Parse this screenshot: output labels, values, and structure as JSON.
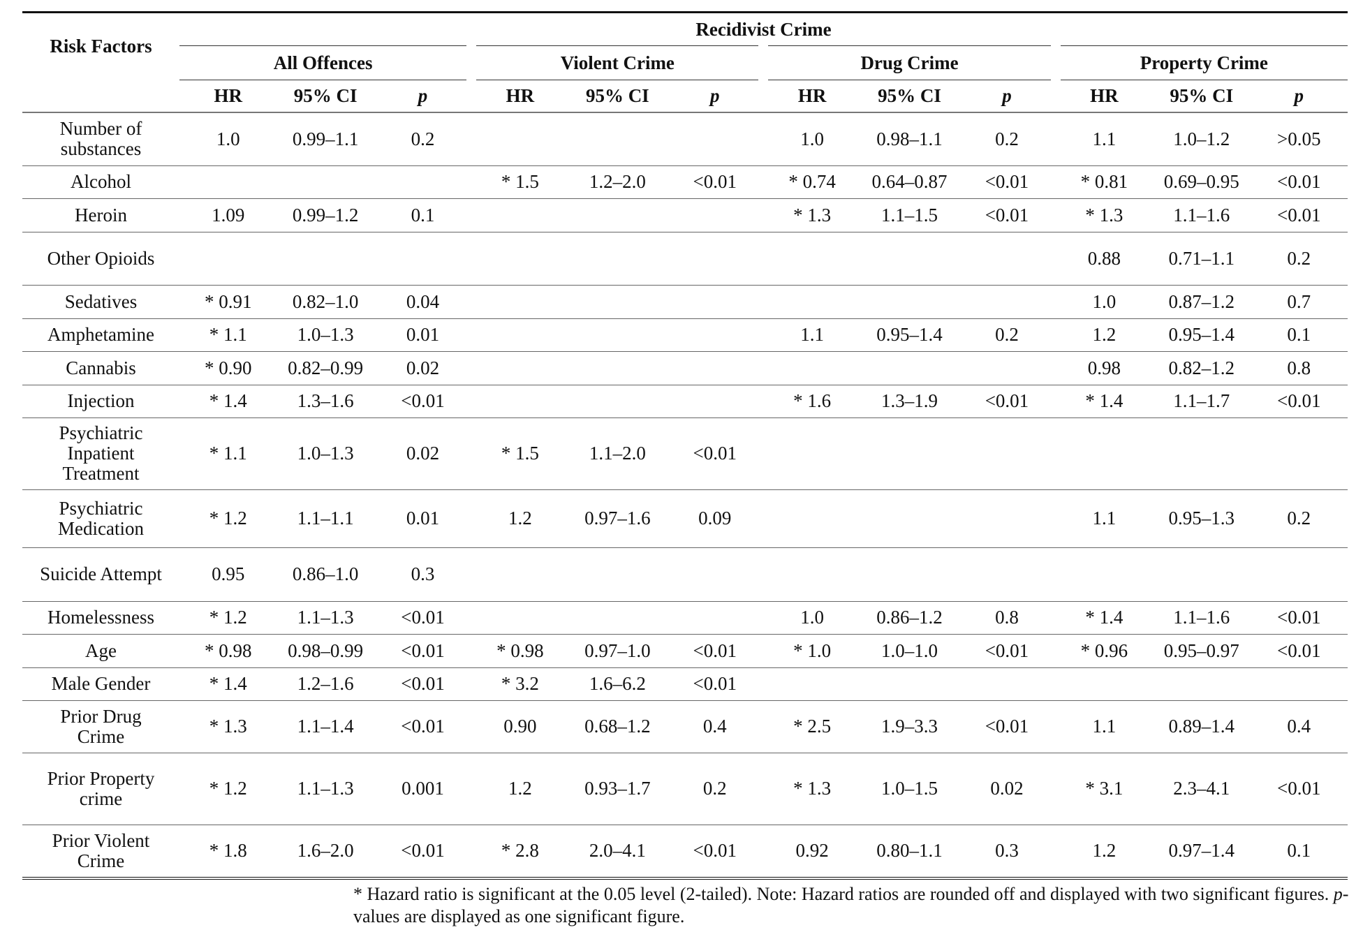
{
  "header": {
    "risk_factors": "Risk Factors",
    "super": "Recidivist Crime",
    "groups": [
      "All Offences",
      "Violent Crime",
      "Drug Crime",
      "Property Crime"
    ],
    "sub": [
      "HR",
      "95% CI",
      "p"
    ]
  },
  "rows": [
    {
      "label": "Number of substances",
      "cells": [
        "1.0",
        "0.99–1.1",
        "0.2",
        "",
        "",
        "",
        "1.0",
        "0.98–1.1",
        "0.2",
        "1.1",
        "1.0–1.2",
        ">0.05"
      ]
    },
    {
      "label": "Alcohol",
      "cells": [
        "",
        "",
        "",
        "* 1.5",
        "1.2–2.0",
        "<0.01",
        "* 0.74",
        "0.64–0.87",
        "<0.01",
        "* 0.81",
        "0.69–0.95",
        "<0.01"
      ]
    },
    {
      "label": "Heroin",
      "cells": [
        "1.09",
        "0.99–1.2",
        "0.1",
        "",
        "",
        "",
        "* 1.3",
        "1.1–1.5",
        "<0.01",
        "* 1.3",
        "1.1–1.6",
        "<0.01"
      ]
    },
    {
      "label": "Other Opioids",
      "cells": [
        "",
        "",
        "",
        "",
        "",
        "",
        "",
        "",
        "",
        "0.88",
        "0.71–1.1",
        "0.2"
      ]
    },
    {
      "label": "Sedatives",
      "cells": [
        "* 0.91",
        "0.82–1.0",
        "0.04",
        "",
        "",
        "",
        "",
        "",
        "",
        "1.0",
        "0.87–1.2",
        "0.7"
      ]
    },
    {
      "label": "Amphetamine",
      "cells": [
        "* 1.1",
        "1.0–1.3",
        "0.01",
        "",
        "",
        "",
        "1.1",
        "0.95–1.4",
        "0.2",
        "1.2",
        "0.95–1.4",
        "0.1"
      ]
    },
    {
      "label": "Cannabis",
      "cells": [
        "* 0.90",
        "0.82–0.99",
        "0.02",
        "",
        "",
        "",
        "",
        "",
        "",
        "0.98",
        "0.82–1.2",
        "0.8"
      ]
    },
    {
      "label": "Injection",
      "cells": [
        "* 1.4",
        "1.3–1.6",
        "<0.01",
        "",
        "",
        "",
        "* 1.6",
        "1.3–1.9",
        "<0.01",
        "* 1.4",
        "1.1–1.7",
        "<0.01"
      ]
    },
    {
      "label": "Psychiatric Inpatient Treatment",
      "cells": [
        "* 1.1",
        "1.0–1.3",
        "0.02",
        "* 1.5",
        "1.1–2.0",
        "<0.01",
        "",
        "",
        "",
        "",
        "",
        ""
      ]
    },
    {
      "label": "Psychiatric Medication",
      "cells": [
        "* 1.2",
        "1.1–1.1",
        "0.01",
        "1.2",
        "0.97–1.6",
        "0.09",
        "",
        "",
        "",
        "1.1",
        "0.95–1.3",
        "0.2"
      ]
    },
    {
      "label": "Suicide Attempt",
      "cells": [
        "0.95",
        "0.86–1.0",
        "0.3",
        "",
        "",
        "",
        "",
        "",
        "",
        "",
        "",
        ""
      ]
    },
    {
      "label": "Homelessness",
      "cells": [
        "* 1.2",
        "1.1–1.3",
        "<0.01",
        "",
        "",
        "",
        "1.0",
        "0.86–1.2",
        "0.8",
        "* 1.4",
        "1.1–1.6",
        "<0.01"
      ]
    },
    {
      "label": "Age",
      "cells": [
        "* 0.98",
        "0.98–0.99",
        "<0.01",
        "* 0.98",
        "0.97–1.0",
        "<0.01",
        "* 1.0",
        "1.0–1.0",
        "<0.01",
        "* 0.96",
        "0.95–0.97",
        "<0.01"
      ]
    },
    {
      "label": "Male Gender",
      "cells": [
        "* 1.4",
        "1.2–1.6",
        "<0.01",
        "* 3.2",
        "1.6–6.2",
        "<0.01",
        "",
        "",
        "",
        "",
        "",
        ""
      ]
    },
    {
      "label": "Prior Drug Crime",
      "cells": [
        "* 1.3",
        "1.1–1.4",
        "<0.01",
        "0.90",
        "0.68–1.2",
        "0.4",
        "* 2.5",
        "1.9–3.3",
        "<0.01",
        "1.1",
        "0.89–1.4",
        "0.4"
      ]
    },
    {
      "label": "Prior Property crime",
      "cells": [
        "* 1.2",
        "1.1–1.3",
        "0.001",
        "1.2",
        "0.93–1.7",
        "0.2",
        "* 1.3",
        "1.0–1.5",
        "0.02",
        "* 3.1",
        "2.3–4.1",
        "<0.01"
      ]
    },
    {
      "label": "Prior Violent Crime",
      "cells": [
        "* 1.8",
        "1.6–2.0",
        "<0.01",
        "* 2.8",
        "2.0–4.1",
        "<0.01",
        "0.92",
        "0.80–1.1",
        "0.3",
        "1.2",
        "0.97–1.4",
        "0.1"
      ]
    }
  ],
  "footnote": {
    "part1": "* Hazard ratio is significant at the 0.05 level (2-tailed). Note: Hazard ratios are rounded off and displayed with two significant figures. ",
    "p": "p",
    "part2": "-values are displayed as one significant figure."
  }
}
